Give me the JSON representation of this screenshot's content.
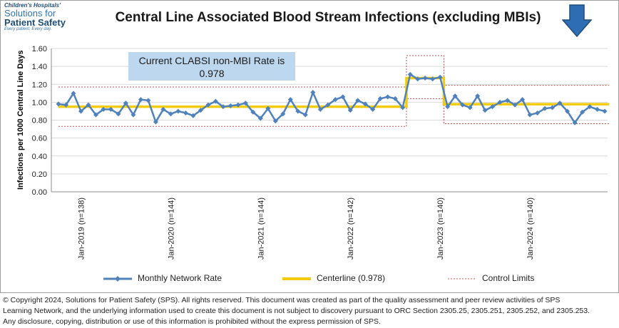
{
  "logo": {
    "line1": "Children's Hospitals'",
    "line2": "Solutions for",
    "line3": "Patient Safety",
    "line4": "Every patient. Every day."
  },
  "annotation": {
    "line1": "Current CLABSI non-MBI Rate is",
    "line2": "0.978"
  },
  "legend": {
    "series": "Monthly Network Rate",
    "centerline": "Centerline (0.978)",
    "limits": "Control Limits"
  },
  "footer": {
    "line1": "© Copyright 2024, Solutions for Patient Safety (SPS).  All rights reserved.  This document was created as part of the quality assessment and peer review activities of SPS",
    "line2": "Learning Network, and the underlying information used to create this document is not subject to discovery pursuant to ORC Section 2305.25, 2305.251, 2305.252, and 2305.253.",
    "line3": "Any disclosure, copying, distribution or use of this information is prohibited without the express permission of SPS."
  },
  "colors": {
    "series": "#4f81bd",
    "centerline": "#f2cc0c",
    "limits": "#c0504d",
    "grid": "#d9d9d9",
    "annotation_bg": "#bdd7ee",
    "arrow": "#2e6cb4"
  },
  "chart_data": {
    "type": "line",
    "title": "Central Line Associated Blood Stream Infections (excluding MBIs)",
    "ylabel": "Infections per 1000 Central Line Days",
    "ylim": [
      0,
      1.6
    ],
    "yticks": [
      "0.00",
      "0.20",
      "0.40",
      "0.60",
      "0.80",
      "1.00",
      "1.20",
      "1.40",
      "1.60"
    ],
    "grid": true,
    "legend_position": "bottom",
    "x_tick_labels": [
      {
        "index": 3,
        "label": "Jan-2019 (n=138)"
      },
      {
        "index": 15,
        "label": "Jan-2020 (n=144)"
      },
      {
        "index": 27,
        "label": "Jan-2021 (n=144)"
      },
      {
        "index": 39,
        "label": "Jan-2022 (n=142)"
      },
      {
        "index": 51,
        "label": "Jan-2023 (n=140)"
      },
      {
        "index": 63,
        "label": "Jan-2024 (n=140)"
      }
    ],
    "series": [
      {
        "name": "Monthly Network Rate",
        "values": [
          0.98,
          0.97,
          1.1,
          0.9,
          0.97,
          0.86,
          0.92,
          0.92,
          0.87,
          0.99,
          0.86,
          1.03,
          1.02,
          0.78,
          0.92,
          0.87,
          0.9,
          0.88,
          0.85,
          0.91,
          0.97,
          1.01,
          0.95,
          0.96,
          0.97,
          0.99,
          0.89,
          0.82,
          0.93,
          0.79,
          0.87,
          1.03,
          0.9,
          0.86,
          1.11,
          0.92,
          0.97,
          1.03,
          1.06,
          0.91,
          1.02,
          0.98,
          0.92,
          1.04,
          1.06,
          1.04,
          0.94,
          1.31,
          1.26,
          1.27,
          1.26,
          1.28,
          0.95,
          1.07,
          0.97,
          0.94,
          1.07,
          0.91,
          0.95,
          1.0,
          1.02,
          0.97,
          1.03,
          0.86,
          0.88,
          0.93,
          0.94,
          0.99,
          0.9,
          0.77,
          0.89,
          0.95,
          0.92,
          0.9
        ]
      },
      {
        "name": "Centerline (0.978)",
        "segments": [
          {
            "from": 0,
            "to": 46,
            "value": 0.95
          },
          {
            "from": 47,
            "to": 51,
            "value": 1.27
          },
          {
            "from": 52,
            "to": 73,
            "value": 0.978
          }
        ]
      },
      {
        "name": "Control Limits",
        "upper": [
          {
            "from": 0,
            "to": 46,
            "value": 1.17
          },
          {
            "from": 47,
            "to": 51,
            "value": 1.52
          },
          {
            "from": 52,
            "to": 73,
            "value": 1.19
          }
        ],
        "lower": [
          {
            "from": 0,
            "to": 46,
            "value": 0.73
          },
          {
            "from": 47,
            "to": 51,
            "value": 1.04
          },
          {
            "from": 52,
            "to": 73,
            "value": 0.76
          }
        ]
      }
    ]
  }
}
